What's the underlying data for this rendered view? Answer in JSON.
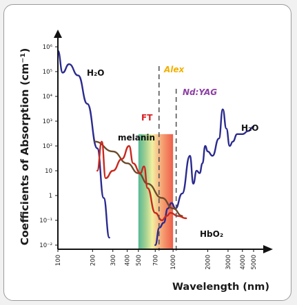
{
  "chart_data": {
    "type": "line",
    "ylabel": "Coefficients of Absorption (cm⁻¹)",
    "xlabel": "Wavelength (nm)",
    "y_scale": "log",
    "x_scale": "log",
    "ylim": [
      0.01,
      1000000
    ],
    "xlim": [
      100,
      5000
    ],
    "y_ticks": [
      "10⁶",
      "10⁵",
      "10⁴",
      "10³",
      "10²",
      "10",
      "1",
      "10⁻¹",
      "10⁻²"
    ],
    "x_ticks": [
      "100",
      "200",
      "300",
      "400",
      "500",
      "700",
      "1000",
      "2000",
      "3000",
      "4000",
      "5000"
    ],
    "series": [
      {
        "name": "H₂O",
        "color": "#2a2a8f",
        "points": [
          [
            100,
            700000
          ],
          [
            110,
            90000
          ],
          [
            125,
            200000
          ],
          [
            150,
            70000
          ],
          [
            180,
            5000
          ],
          [
            220,
            80
          ],
          [
            250,
            0.8
          ],
          [
            280,
            0.02
          ]
        ]
      },
      {
        "name": "H₂O",
        "color": "#2a2a8f",
        "points": [
          [
            700,
            0.01
          ],
          [
            760,
            0.05
          ],
          [
            830,
            0.08
          ],
          [
            900,
            0.3
          ],
          [
            970,
            0.5
          ],
          [
            1050,
            0.3
          ],
          [
            1200,
            1.2
          ],
          [
            1400,
            40
          ],
          [
            1500,
            3
          ],
          [
            1600,
            10
          ],
          [
            1700,
            8
          ],
          [
            1800,
            20
          ],
          [
            1900,
            100
          ],
          [
            2000,
            60
          ],
          [
            2200,
            40
          ],
          [
            2500,
            200
          ],
          [
            2700,
            3000
          ],
          [
            2900,
            500
          ],
          [
            3100,
            100
          ],
          [
            3300,
            150
          ],
          [
            3600,
            300
          ],
          [
            4000,
            300
          ],
          [
            4500,
            400
          ],
          [
            5000,
            600
          ]
        ]
      },
      {
        "name": "melanin",
        "color": "#6e4b2a",
        "points": [
          [
            210,
            150
          ],
          [
            300,
            60
          ],
          [
            400,
            20
          ],
          [
            500,
            8
          ],
          [
            600,
            3
          ],
          [
            800,
            0.8
          ],
          [
            1000,
            0.3
          ],
          [
            1200,
            0.15
          ]
        ]
      },
      {
        "name": "HbO₂",
        "color": "#c8281e",
        "points": [
          [
            220,
            10
          ],
          [
            240,
            150
          ],
          [
            260,
            5
          ],
          [
            300,
            10
          ],
          [
            360,
            30
          ],
          [
            415,
            100
          ],
          [
            450,
            20
          ],
          [
            520,
            8
          ],
          [
            560,
            15
          ],
          [
            600,
            2
          ],
          [
            700,
            0.2
          ],
          [
            800,
            0.1
          ],
          [
            880,
            0.15
          ],
          [
            950,
            0.2
          ],
          [
            1100,
            0.15
          ],
          [
            1300,
            0.12
          ]
        ]
      }
    ],
    "bands": [
      {
        "name": "FT",
        "color": "#d71f24",
        "x_range": [
          500,
          1000
        ]
      }
    ],
    "markers": [
      {
        "name": "Alex",
        "color": "#f2b000",
        "x": 755
      },
      {
        "name": "Nd:YAG",
        "color": "#8c3fa2",
        "x": 1064
      }
    ]
  }
}
